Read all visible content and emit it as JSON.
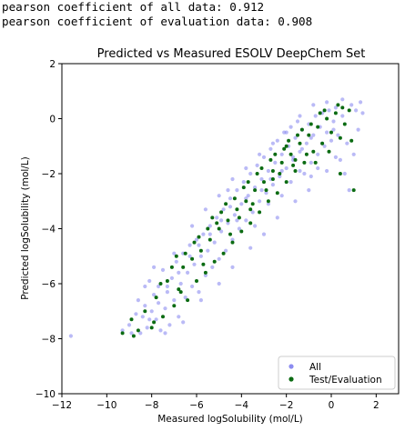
{
  "console": {
    "line1": "pearson coefficient of all data: 0.912",
    "line2": "pearson coefficient of evaluation data: 0.908"
  },
  "chart_data": {
    "type": "scatter",
    "title": "Predicted vs Measured ESOLV DeepChem Set",
    "xlabel": "Measured logSolubility (mol/L)",
    "ylabel": "Predicted logSolubility (mol/L)",
    "xlim": [
      -12,
      3
    ],
    "ylim": [
      -10,
      2
    ],
    "xticks": [
      "−12",
      "−10",
      "−8",
      "−6",
      "−4",
      "−2",
      "0",
      "2"
    ],
    "yticks": [
      "−10",
      "−8",
      "−6",
      "−4",
      "−2",
      "0",
      "2"
    ],
    "grid": false,
    "legend_position": "lower-right",
    "colors": {
      "all": "#8c8cf0",
      "test": "#0b6b12"
    },
    "series": [
      {
        "name": "All",
        "points": [
          [
            -11.6,
            -7.9
          ],
          [
            -9.3,
            -7.7
          ],
          [
            -9.0,
            -7.5
          ],
          [
            -8.9,
            -7.8
          ],
          [
            -8.7,
            -7.1
          ],
          [
            -8.6,
            -6.6
          ],
          [
            -8.4,
            -7.2
          ],
          [
            -8.3,
            -6.8
          ],
          [
            -8.2,
            -7.6
          ],
          [
            -8.1,
            -5.9
          ],
          [
            -8.0,
            -7.0
          ],
          [
            -7.9,
            -6.4
          ],
          [
            -7.8,
            -7.3
          ],
          [
            -7.7,
            -6.1
          ],
          [
            -7.6,
            -7.7
          ],
          [
            -7.5,
            -5.5
          ],
          [
            -7.4,
            -6.9
          ],
          [
            -7.3,
            -6.3
          ],
          [
            -7.2,
            -7.5
          ],
          [
            -7.1,
            -5.8
          ],
          [
            -7.0,
            -6.6
          ],
          [
            -6.9,
            -5.2
          ],
          [
            -6.8,
            -7.2
          ],
          [
            -6.7,
            -6.0
          ],
          [
            -6.6,
            -4.9
          ],
          [
            -6.5,
            -6.5
          ],
          [
            -6.4,
            -5.6
          ],
          [
            -6.3,
            -4.6
          ],
          [
            -6.2,
            -6.1
          ],
          [
            -6.1,
            -5.3
          ],
          [
            -6.0,
            -4.4
          ],
          [
            -5.9,
            -6.3
          ],
          [
            -5.8,
            -5.0
          ],
          [
            -5.7,
            -4.2
          ],
          [
            -5.6,
            -5.7
          ],
          [
            -5.5,
            -4.8
          ],
          [
            -5.4,
            -3.9
          ],
          [
            -5.3,
            -5.4
          ],
          [
            -5.2,
            -4.5
          ],
          [
            -5.1,
            -3.6
          ],
          [
            -5.0,
            -5.1
          ],
          [
            -4.9,
            -4.1
          ],
          [
            -4.8,
            -3.3
          ],
          [
            -4.7,
            -4.8
          ],
          [
            -4.6,
            -3.8
          ],
          [
            -4.5,
            -2.9
          ],
          [
            -4.4,
            -4.4
          ],
          [
            -4.3,
            -3.5
          ],
          [
            -4.2,
            -2.6
          ],
          [
            -4.1,
            -4.0
          ],
          [
            -4.0,
            -3.1
          ],
          [
            -3.9,
            -2.3
          ],
          [
            -3.8,
            -3.7
          ],
          [
            -3.7,
            -2.8
          ],
          [
            -3.6,
            -2.0
          ],
          [
            -3.5,
            -3.4
          ],
          [
            -3.4,
            -2.5
          ],
          [
            -3.3,
            -1.7
          ],
          [
            -3.2,
            -3.0
          ],
          [
            -3.1,
            -2.2
          ],
          [
            -3.0,
            -1.4
          ],
          [
            -2.9,
            -2.7
          ],
          [
            -2.8,
            -1.9
          ],
          [
            -2.7,
            -1.1
          ],
          [
            -2.6,
            -2.4
          ],
          [
            -2.5,
            -1.6
          ],
          [
            -2.4,
            -0.8
          ],
          [
            -2.3,
            -2.1
          ],
          [
            -2.2,
            -1.3
          ],
          [
            -2.1,
            -0.5
          ],
          [
            -2.0,
            -1.8
          ],
          [
            -1.9,
            -1.0
          ],
          [
            -1.8,
            -0.3
          ],
          [
            -1.7,
            -1.5
          ],
          [
            -1.6,
            -0.7
          ],
          [
            -1.5,
            -0.1
          ],
          [
            -1.4,
            -1.2
          ],
          [
            -1.3,
            -0.4
          ],
          [
            -1.2,
            -2.0
          ],
          [
            -1.1,
            -0.9
          ],
          [
            -1.0,
            -0.2
          ],
          [
            -0.9,
            -1.6
          ],
          [
            -0.8,
            -0.6
          ],
          [
            -0.7,
            0.1
          ],
          [
            -0.6,
            -1.3
          ],
          [
            -0.5,
            -0.3
          ],
          [
            -0.4,
            0.2
          ],
          [
            -0.3,
            -1.0
          ],
          [
            -0.2,
            -0.5
          ],
          [
            -0.1,
            0.3
          ],
          [
            0.0,
            -0.8
          ],
          [
            0.1,
            -0.1
          ],
          [
            0.2,
            0.4
          ],
          [
            0.3,
            -0.6
          ],
          [
            0.4,
            -1.5
          ],
          [
            0.5,
            0.1
          ],
          [
            0.6,
            -2.0
          ],
          [
            0.7,
            -0.9
          ],
          [
            0.8,
            -2.6
          ],
          [
            0.9,
            0.5
          ],
          [
            1.0,
            -1.3
          ],
          [
            1.1,
            0.3
          ],
          [
            1.2,
            -0.4
          ],
          [
            1.3,
            0.6
          ],
          [
            1.4,
            0.2
          ],
          [
            -1.0,
            -2.6
          ],
          [
            -1.6,
            -3.0
          ],
          [
            -2.4,
            -3.6
          ],
          [
            -3.0,
            -4.2
          ],
          [
            -3.6,
            -4.7
          ],
          [
            -4.4,
            -5.4
          ],
          [
            -5.0,
            -6.0
          ],
          [
            -5.8,
            -6.6
          ],
          [
            -6.6,
            -7.4
          ],
          [
            -7.4,
            -7.8
          ],
          [
            -8.3,
            -6.1
          ],
          [
            -7.9,
            -5.4
          ],
          [
            -7.0,
            -4.9
          ],
          [
            -6.2,
            -3.9
          ],
          [
            -5.6,
            -3.3
          ],
          [
            -5.0,
            -2.8
          ],
          [
            -4.4,
            -2.2
          ],
          [
            -3.8,
            -1.8
          ],
          [
            -3.2,
            -1.3
          ],
          [
            -2.6,
            -0.9
          ],
          [
            -2.0,
            -0.5
          ],
          [
            -1.4,
            0.1
          ],
          [
            -0.8,
            0.5
          ],
          [
            -0.2,
            0.6
          ],
          [
            0.5,
            0.7
          ],
          [
            -4.6,
            -2.6
          ],
          [
            -4.2,
            -3.7
          ],
          [
            -3.4,
            -3.9
          ],
          [
            -2.8,
            -3.1
          ],
          [
            -2.2,
            -2.8
          ],
          [
            -1.8,
            -2.3
          ],
          [
            -1.4,
            -1.9
          ],
          [
            -0.9,
            -2.1
          ],
          [
            -0.6,
            -1.8
          ],
          [
            -0.2,
            -1.9
          ],
          [
            0.2,
            -1.4
          ],
          [
            -3.8,
            -2.9
          ],
          [
            -3.1,
            -2.6
          ],
          [
            -2.7,
            -2.2
          ],
          [
            -2.2,
            -1.9
          ],
          [
            -1.7,
            -1.4
          ],
          [
            -1.3,
            -1.1
          ],
          [
            -0.9,
            -0.7
          ],
          [
            -0.4,
            -0.9
          ],
          [
            0.1,
            -0.4
          ],
          [
            -6.8,
            -5.6
          ],
          [
            -6.3,
            -5.0
          ],
          [
            -5.9,
            -4.6
          ],
          [
            -5.4,
            -4.2
          ],
          [
            -4.9,
            -3.7
          ],
          [
            -4.5,
            -3.2
          ],
          [
            -7.3,
            -6.1
          ],
          [
            -7.7,
            -6.7
          ],
          [
            -8.1,
            -7.3
          ],
          [
            -8.5,
            -7.8
          ]
        ]
      },
      {
        "name": "Test/Evaluation",
        "points": [
          [
            -9.3,
            -7.8
          ],
          [
            -8.9,
            -7.3
          ],
          [
            -8.6,
            -7.7
          ],
          [
            -8.3,
            -7.0
          ],
          [
            -8.0,
            -7.6
          ],
          [
            -7.8,
            -6.5
          ],
          [
            -7.5,
            -7.2
          ],
          [
            -7.3,
            -5.9
          ],
          [
            -7.0,
            -6.8
          ],
          [
            -6.8,
            -6.2
          ],
          [
            -6.6,
            -5.4
          ],
          [
            -6.4,
            -6.6
          ],
          [
            -6.2,
            -5.1
          ],
          [
            -6.0,
            -5.9
          ],
          [
            -5.8,
            -4.8
          ],
          [
            -5.6,
            -5.6
          ],
          [
            -5.4,
            -4.4
          ],
          [
            -5.2,
            -5.2
          ],
          [
            -5.0,
            -4.0
          ],
          [
            -4.8,
            -4.9
          ],
          [
            -4.6,
            -3.7
          ],
          [
            -4.4,
            -4.5
          ],
          [
            -4.2,
            -3.3
          ],
          [
            -4.0,
            -4.1
          ],
          [
            -3.8,
            -3.0
          ],
          [
            -3.6,
            -3.8
          ],
          [
            -3.4,
            -2.6
          ],
          [
            -3.2,
            -3.4
          ],
          [
            -3.0,
            -2.3
          ],
          [
            -2.8,
            -3.0
          ],
          [
            -2.6,
            -1.9
          ],
          [
            -2.4,
            -2.7
          ],
          [
            -2.2,
            -1.6
          ],
          [
            -2.0,
            -2.3
          ],
          [
            -1.8,
            -1.3
          ],
          [
            -1.6,
            -1.9
          ],
          [
            -1.4,
            -0.9
          ],
          [
            -1.2,
            -1.6
          ],
          [
            -1.0,
            -0.6
          ],
          [
            -0.8,
            -1.2
          ],
          [
            -0.6,
            -0.3
          ],
          [
            -0.4,
            -0.9
          ],
          [
            -0.2,
            0.0
          ],
          [
            0.0,
            -0.5
          ],
          [
            0.2,
            0.2
          ],
          [
            0.4,
            -2.0
          ],
          [
            0.6,
            -0.2
          ],
          [
            0.8,
            0.3
          ],
          [
            1.0,
            -2.6
          ],
          [
            0.5,
            0.4
          ],
          [
            -5.3,
            -3.6
          ],
          [
            -4.7,
            -3.1
          ],
          [
            -3.9,
            -2.5
          ],
          [
            -3.3,
            -2.0
          ],
          [
            -2.7,
            -1.5
          ],
          [
            -2.1,
            -1.1
          ],
          [
            -1.5,
            -0.6
          ],
          [
            -0.9,
            -0.2
          ],
          [
            -0.3,
            0.3
          ],
          [
            0.3,
            0.5
          ],
          [
            -6.9,
            -5.0
          ],
          [
            -6.1,
            -4.5
          ],
          [
            -5.5,
            -4.0
          ],
          [
            -4.9,
            -3.4
          ],
          [
            -4.3,
            -2.9
          ],
          [
            -3.7,
            -2.3
          ],
          [
            -3.1,
            -1.8
          ],
          [
            -2.5,
            -1.3
          ],
          [
            -1.9,
            -0.8
          ],
          [
            -1.3,
            -0.4
          ],
          [
            -7.6,
            -6.0
          ],
          [
            -7.1,
            -5.4
          ],
          [
            -6.5,
            -4.9
          ],
          [
            -5.9,
            -4.3
          ],
          [
            -5.1,
            -3.8
          ],
          [
            -4.1,
            -3.6
          ],
          [
            -3.5,
            -3.1
          ],
          [
            -2.9,
            -2.6
          ],
          [
            -2.3,
            -2.0
          ],
          [
            -1.7,
            -1.7
          ],
          [
            -1.1,
            -1.3
          ],
          [
            -0.7,
            -1.6
          ],
          [
            -0.1,
            -1.2
          ],
          [
            0.4,
            -0.7
          ],
          [
            -2.0,
            -1.0
          ],
          [
            -1.6,
            -1.5
          ],
          [
            -2.6,
            -2.2
          ],
          [
            -3.6,
            -3.3
          ],
          [
            -4.5,
            -4.2
          ],
          [
            -5.7,
            -5.3
          ],
          [
            -6.7,
            -6.3
          ],
          [
            -7.9,
            -7.4
          ],
          [
            -8.8,
            -7.9
          ],
          [
            -0.5,
            0.2
          ],
          [
            0.9,
            -0.8
          ]
        ]
      }
    ]
  }
}
